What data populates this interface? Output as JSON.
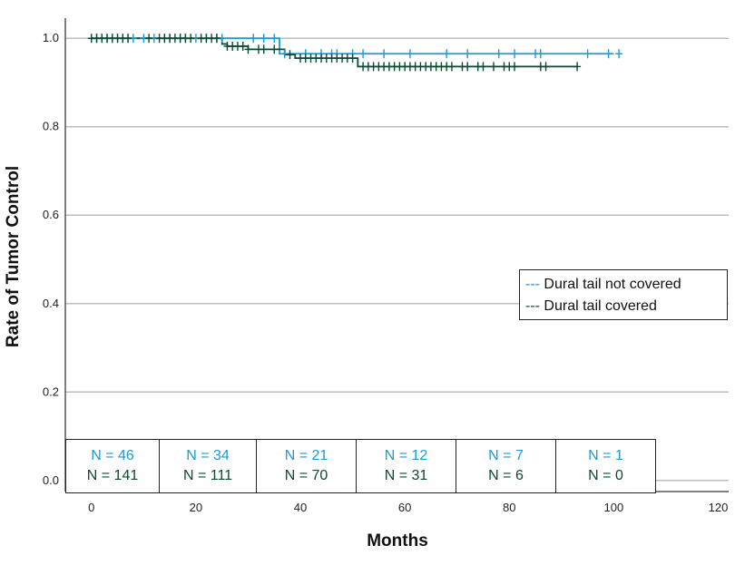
{
  "colors": {
    "not_covered": "#1a9ad6",
    "covered": "#0b4a2c",
    "grid": "#bdbdbd",
    "axis": "#555555"
  },
  "chart_data": {
    "type": "line",
    "subtype": "kaplan-meier step",
    "title": "",
    "xlabel": "Months",
    "ylabel": "Rate of Tumor Control",
    "xlim": [
      -5,
      122
    ],
    "ylim": [
      -0.025,
      1.025
    ],
    "x_ticks": [
      "0",
      "20",
      "40",
      "60",
      "80",
      "100",
      "120"
    ],
    "y_ticks": [
      "0.0",
      "0.2",
      "0.4",
      "0.6",
      "0.8",
      "1.0"
    ],
    "grid": "horizontal",
    "legend_position": "right",
    "series": [
      {
        "name": "Dural tail not covered",
        "color": "#1a9ad6",
        "steps": [
          [
            0,
            1.0
          ],
          [
            36,
            0.965
          ],
          [
            100,
            0.965
          ]
        ],
        "censor_times": [
          1,
          2,
          3,
          4,
          5,
          6,
          7,
          8,
          10,
          12,
          14,
          15,
          17,
          18,
          20,
          22,
          24,
          25,
          31,
          33,
          35,
          37,
          41,
          44,
          46,
          47,
          50,
          52,
          56,
          61,
          68,
          72,
          78,
          81,
          85,
          86,
          95,
          99,
          101
        ]
      },
      {
        "name": "Dural tail covered",
        "color": "#0b4a2c",
        "steps": [
          [
            0,
            1.0
          ],
          [
            25,
            0.987
          ],
          [
            26,
            0.982
          ],
          [
            30,
            0.975
          ],
          [
            37,
            0.963
          ],
          [
            39,
            0.955
          ],
          [
            51,
            0.936
          ],
          [
            93,
            0.936
          ]
        ],
        "censor_times": [
          0,
          1,
          2,
          3,
          4,
          5,
          6,
          7,
          11,
          13,
          14,
          15,
          16,
          17,
          18,
          19,
          21,
          22,
          23,
          24,
          26,
          27,
          28,
          29,
          30,
          32,
          33,
          35,
          38,
          40,
          41,
          42,
          43,
          44,
          45,
          46,
          47,
          48,
          49,
          50,
          52,
          53,
          54,
          55,
          56,
          57,
          58,
          59,
          60,
          61,
          62,
          63,
          64,
          65,
          66,
          67,
          68,
          69,
          71,
          72,
          74,
          75,
          77,
          79,
          80,
          81,
          86,
          87,
          93
        ]
      }
    ],
    "risk_table": {
      "rows": [
        {
          "group": "Dural tail not covered",
          "values": [
            "N = 46",
            "N = 34",
            "N = 21",
            "N = 12",
            "N = 7",
            "N = 1"
          ]
        },
        {
          "group": "Dural tail covered",
          "values": [
            "N = 141",
            "N = 111",
            "N = 70",
            "N = 31",
            "N = 6",
            "N = 0"
          ]
        }
      ]
    },
    "legend": [
      {
        "label": "--- Dural tail not covered"
      },
      {
        "label": "--- Dural tail covered"
      }
    ]
  }
}
